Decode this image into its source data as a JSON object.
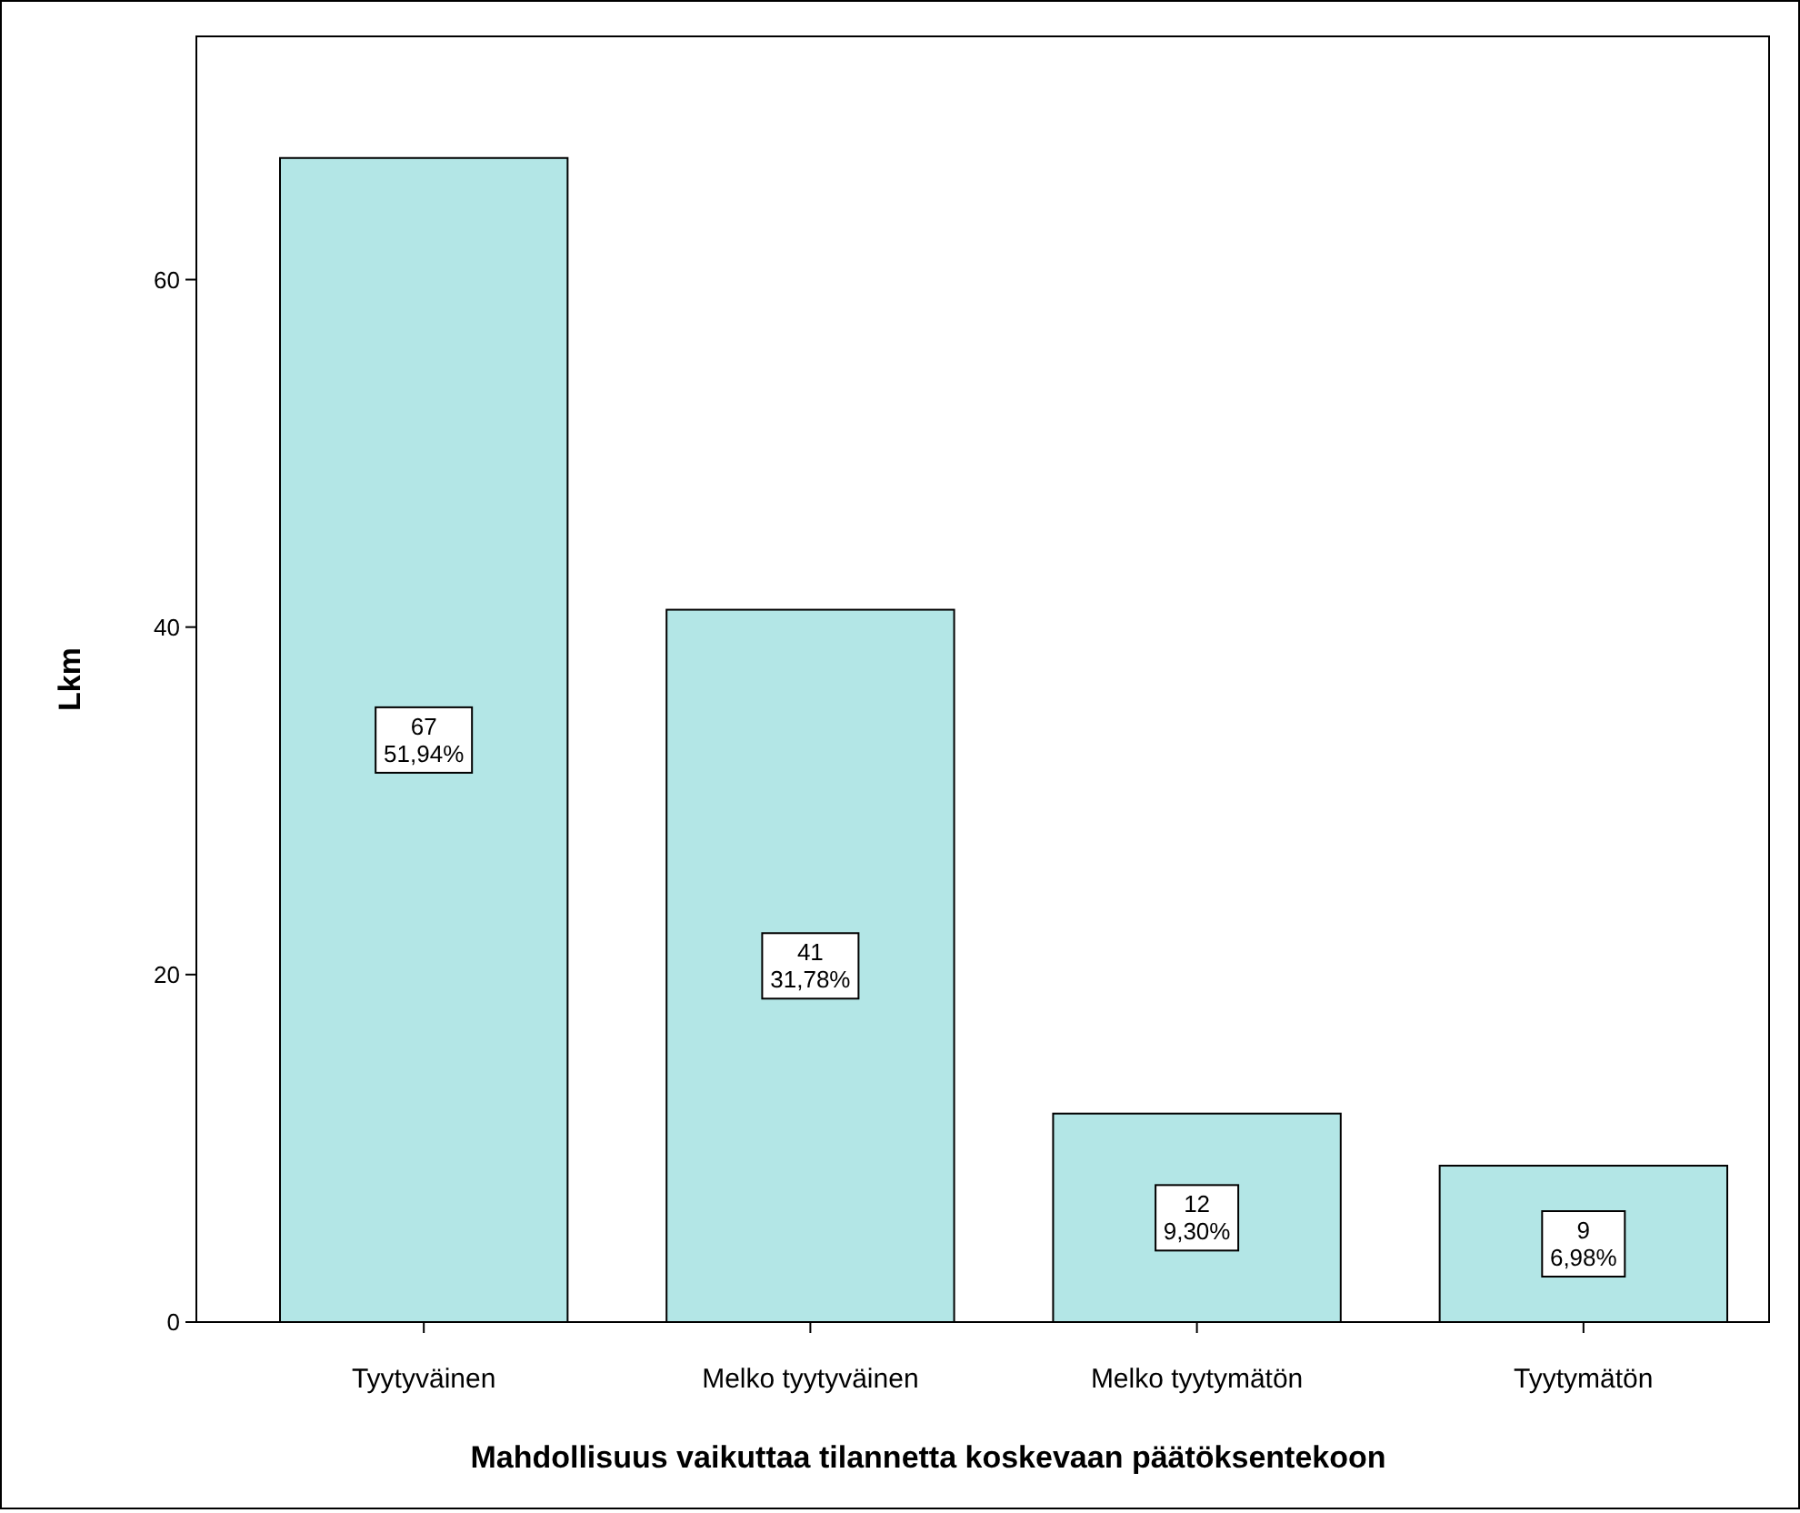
{
  "chart_data": {
    "type": "bar",
    "xlabel": "Mahdollisuus vaikuttaa tilannetta koskevaan päätöksentekoon",
    "ylabel": "Lkm",
    "categories": [
      "Tyytyväinen",
      "Melko tyytyväinen",
      "Melko tyytymätön",
      "Tyytymätön"
    ],
    "values": [
      67,
      41,
      12,
      9
    ],
    "value_labels": [
      "67\n51,94%",
      "41\n31,78%",
      "12\n9,30%",
      "9\n6,98%"
    ],
    "color": "#b3e6e6",
    "ylim": [
      0,
      74
    ],
    "yticks": [
      0,
      20,
      40,
      60
    ],
    "grid": false
  }
}
